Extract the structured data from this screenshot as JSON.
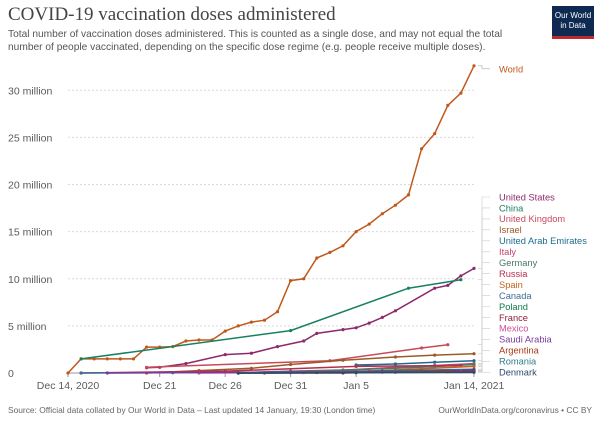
{
  "header": {
    "title": "COVID-19 vaccination doses administered",
    "subtitle": "Total number of vaccination doses administered. This is counted as a single dose, and may not equal the total number of people vaccinated, depending on the specific dose regime (e.g. people receive multiple doses).",
    "logo_line1": "Our World",
    "logo_line2": "in Data"
  },
  "footer": {
    "source": "Source: Official data collated by Our World in Data – Last updated 14 January, 19:30 (London time)",
    "credit": "OurWorldInData.org/coronavirus • CC BY"
  },
  "chart_data": {
    "type": "line",
    "title": "COVID-19 vaccination doses administered",
    "xlabel": "",
    "ylabel": "",
    "x_range": [
      "2020-12-14",
      "2021-01-14"
    ],
    "ylim": [
      0,
      33000000
    ],
    "grid": "horizontal-dotted",
    "y_ticks": [
      {
        "value": 0,
        "label": "0"
      },
      {
        "value": 5000000,
        "label": "5 million"
      },
      {
        "value": 10000000,
        "label": "10 million"
      },
      {
        "value": 15000000,
        "label": "15 million"
      },
      {
        "value": 20000000,
        "label": "20 million"
      },
      {
        "value": 25000000,
        "label": "25 million"
      },
      {
        "value": 30000000,
        "label": "30 million"
      }
    ],
    "x_ticks": [
      {
        "date": "2020-12-14",
        "label": "Dec 14, 2020"
      },
      {
        "date": "2020-12-21",
        "label": "Dec 21"
      },
      {
        "date": "2020-12-26",
        "label": "Dec 26"
      },
      {
        "date": "2020-12-31",
        "label": "Dec 31"
      },
      {
        "date": "2021-01-05",
        "label": "Jan 5"
      },
      {
        "date": "2021-01-14",
        "label": "Jan 14, 2021"
      }
    ],
    "legend_placement": "right",
    "series": [
      {
        "name": "World",
        "color": "#c0581b",
        "markers": true,
        "data": [
          [
            "2020-12-14",
            0
          ],
          [
            "2020-12-15",
            1500000
          ],
          [
            "2020-12-16",
            1500000
          ],
          [
            "2020-12-17",
            1500000
          ],
          [
            "2020-12-18",
            1500000
          ],
          [
            "2020-12-19",
            1500000
          ],
          [
            "2020-12-20",
            2750000
          ],
          [
            "2020-12-21",
            2750000
          ],
          [
            "2020-12-22",
            2800000
          ],
          [
            "2020-12-23",
            3400000
          ],
          [
            "2020-12-24",
            3500000
          ],
          [
            "2020-12-25",
            3500000
          ],
          [
            "2020-12-26",
            4450000
          ],
          [
            "2020-12-27",
            5000000
          ],
          [
            "2020-12-28",
            5400000
          ],
          [
            "2020-12-29",
            5600000
          ],
          [
            "2020-12-30",
            6500000
          ],
          [
            "2020-12-31",
            9800000
          ],
          [
            "2021-01-01",
            10000000
          ],
          [
            "2021-01-02",
            12200000
          ],
          [
            "2021-01-03",
            12800000
          ],
          [
            "2021-01-04",
            13500000
          ],
          [
            "2021-01-05",
            15000000
          ],
          [
            "2021-01-06",
            15800000
          ],
          [
            "2021-01-07",
            16900000
          ],
          [
            "2021-01-08",
            17800000
          ],
          [
            "2021-01-09",
            18900000
          ],
          [
            "2021-01-10",
            23800000
          ],
          [
            "2021-01-11",
            25400000
          ],
          [
            "2021-01-12",
            28400000
          ],
          [
            "2021-01-13",
            29700000
          ],
          [
            "2021-01-14",
            32600000
          ]
        ]
      },
      {
        "name": "United States",
        "color": "#8c2a6b",
        "markers": true,
        "data": [
          [
            "2020-12-20",
            550000
          ],
          [
            "2020-12-21",
            600000
          ],
          [
            "2020-12-23",
            1000000
          ],
          [
            "2020-12-26",
            1950000
          ],
          [
            "2020-12-28",
            2100000
          ],
          [
            "2020-12-30",
            2800000
          ],
          [
            "2021-01-01",
            3400000
          ],
          [
            "2021-01-02",
            4200000
          ],
          [
            "2021-01-04",
            4600000
          ],
          [
            "2021-01-05",
            4800000
          ],
          [
            "2021-01-06",
            5300000
          ],
          [
            "2021-01-07",
            5900000
          ],
          [
            "2021-01-08",
            6600000
          ],
          [
            "2021-01-11",
            9000000
          ],
          [
            "2021-01-12",
            9300000
          ],
          [
            "2021-01-13",
            10300000
          ],
          [
            "2021-01-14",
            11100000
          ]
        ]
      },
      {
        "name": "China",
        "color": "#18805f",
        "markers": true,
        "data": [
          [
            "2020-12-15",
            1500000
          ],
          [
            "2020-12-31",
            4500000
          ],
          [
            "2021-01-09",
            9000000
          ],
          [
            "2021-01-13",
            9900000
          ]
        ]
      },
      {
        "name": "United Kingdom",
        "color": "#c84a5b",
        "markers": true,
        "data": [
          [
            "2020-12-20",
            600000
          ],
          [
            "2021-01-03",
            1300000
          ],
          [
            "2021-01-10",
            2650000
          ],
          [
            "2021-01-12",
            3000000
          ]
        ]
      },
      {
        "name": "Israel",
        "color": "#9b5a26",
        "markers": true,
        "data": [
          [
            "2020-12-20",
            5000
          ],
          [
            "2020-12-24",
            250000
          ],
          [
            "2020-12-28",
            500000
          ],
          [
            "2020-12-31",
            900000
          ],
          [
            "2021-01-04",
            1350000
          ],
          [
            "2021-01-08",
            1700000
          ],
          [
            "2021-01-11",
            1900000
          ],
          [
            "2021-01-14",
            2050000
          ]
        ]
      },
      {
        "name": "United Arab Emirates",
        "color": "#1c6c8f",
        "markers": true,
        "data": [
          [
            "2021-01-05",
            850000
          ],
          [
            "2021-01-08",
            950000
          ],
          [
            "2021-01-11",
            1150000
          ],
          [
            "2021-01-14",
            1300000
          ]
        ]
      },
      {
        "name": "Italy",
        "color": "#c9406f",
        "markers": true,
        "data": [
          [
            "2020-12-27",
            5000
          ],
          [
            "2020-12-31",
            40000
          ],
          [
            "2021-01-04",
            300000
          ],
          [
            "2021-01-08",
            600000
          ],
          [
            "2021-01-11",
            800000
          ],
          [
            "2021-01-14",
            1000000
          ]
        ]
      },
      {
        "name": "Germany",
        "color": "#4a7a6a",
        "markers": true,
        "data": [
          [
            "2020-12-27",
            20000
          ],
          [
            "2020-12-31",
            200000
          ],
          [
            "2021-01-04",
            320000
          ],
          [
            "2021-01-08",
            500000
          ],
          [
            "2021-01-11",
            680000
          ],
          [
            "2021-01-14",
            900000
          ]
        ]
      },
      {
        "name": "Russia",
        "color": "#b72d4c",
        "markers": true,
        "data": [
          [
            "2020-12-15",
            0
          ],
          [
            "2020-12-26",
            200000
          ],
          [
            "2021-01-05",
            700000
          ],
          [
            "2021-01-13",
            800000
          ]
        ]
      },
      {
        "name": "Spain",
        "color": "#c1631f",
        "markers": true,
        "data": [
          [
            "2020-12-27",
            0
          ],
          [
            "2021-01-01",
            80000
          ],
          [
            "2021-01-06",
            200000
          ],
          [
            "2021-01-10",
            450000
          ],
          [
            "2021-01-14",
            700000
          ]
        ]
      },
      {
        "name": "Canada",
        "color": "#3c6e96",
        "markers": true,
        "data": [
          [
            "2020-12-15",
            0
          ],
          [
            "2020-12-22",
            25000
          ],
          [
            "2020-12-31",
            110000
          ],
          [
            "2021-01-07",
            230000
          ],
          [
            "2021-01-14",
            400000
          ]
        ]
      },
      {
        "name": "Poland",
        "color": "#0f7b4b",
        "markers": true,
        "data": [
          [
            "2020-12-27",
            0
          ],
          [
            "2021-01-02",
            50000
          ],
          [
            "2021-01-07",
            130000
          ],
          [
            "2021-01-10",
            200000
          ],
          [
            "2021-01-14",
            300000
          ]
        ]
      },
      {
        "name": "France",
        "color": "#901f3f",
        "markers": true,
        "data": [
          [
            "2020-12-27",
            0
          ],
          [
            "2021-01-04",
            2000
          ],
          [
            "2021-01-08",
            80000
          ],
          [
            "2021-01-14",
            300000
          ]
        ]
      },
      {
        "name": "Mexico",
        "color": "#d04e9a",
        "markers": true,
        "data": [
          [
            "2020-12-24",
            0
          ],
          [
            "2021-01-01",
            45000
          ],
          [
            "2021-01-07",
            75000
          ],
          [
            "2021-01-13",
            150000
          ]
        ]
      },
      {
        "name": "Saudi Arabia",
        "color": "#7a3a9a",
        "markers": true,
        "data": [
          [
            "2020-12-17",
            0
          ],
          [
            "2020-12-31",
            100000
          ],
          [
            "2021-01-07",
            150000
          ],
          [
            "2021-01-14",
            200000
          ]
        ]
      },
      {
        "name": "Argentina",
        "color": "#a83a15",
        "markers": true,
        "data": [
          [
            "2020-12-29",
            0
          ],
          [
            "2021-01-05",
            100000
          ],
          [
            "2021-01-12",
            140000
          ]
        ]
      },
      {
        "name": "Romania",
        "color": "#2f7d8a",
        "markers": true,
        "data": [
          [
            "2020-12-27",
            0
          ],
          [
            "2021-01-05",
            40000
          ],
          [
            "2021-01-14",
            100000
          ]
        ]
      },
      {
        "name": "Denmark",
        "color": "#2c4a6b",
        "markers": true,
        "data": [
          [
            "2020-12-27",
            0
          ],
          [
            "2021-01-05",
            40000
          ],
          [
            "2021-01-14",
            90000
          ]
        ]
      }
    ]
  }
}
